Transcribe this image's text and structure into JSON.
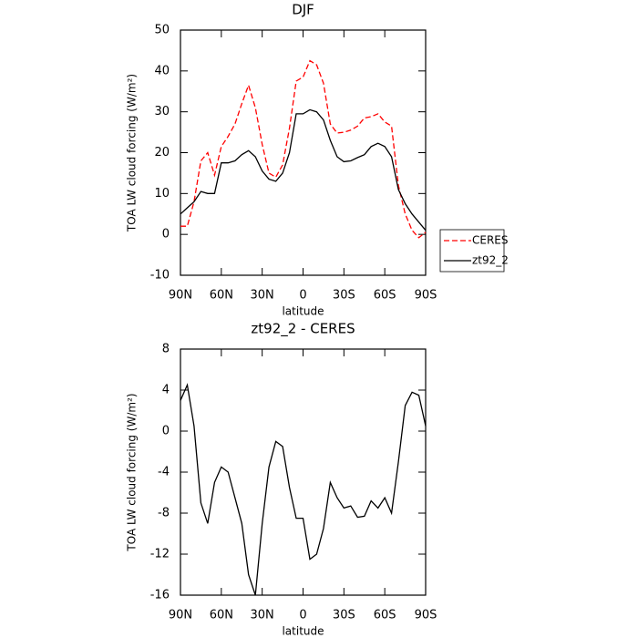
{
  "chart_data": [
    {
      "type": "line",
      "title": "DJF",
      "xlabel": "latitude",
      "ylabel": "TOA LW cloud forcing (W/m²)",
      "x": [
        90,
        85,
        80,
        75,
        70,
        65,
        60,
        55,
        50,
        45,
        40,
        35,
        30,
        25,
        20,
        15,
        10,
        5,
        0,
        -5,
        -10,
        -15,
        -20,
        -25,
        -30,
        -35,
        -40,
        -45,
        -50,
        -55,
        -60,
        -65,
        -70,
        -75,
        -80,
        -85,
        -90
      ],
      "xlim": [
        90,
        -90
      ],
      "xticks": [
        {
          "value": 90,
          "label": "90N"
        },
        {
          "value": 60,
          "label": "60N"
        },
        {
          "value": 30,
          "label": "30N"
        },
        0,
        {
          "value": -30,
          "label": "30S"
        },
        {
          "value": -60,
          "label": "60S"
        },
        {
          "value": -90,
          "label": "90S"
        }
      ],
      "ylim": [
        -10,
        50
      ],
      "yticks": [
        -10,
        0,
        10,
        20,
        30,
        40,
        50
      ],
      "legend": "right",
      "series": [
        {
          "name": "CERES",
          "color": "#ff0000",
          "style": "dashed",
          "values": [
            2,
            2,
            8,
            18,
            20,
            14.5,
            21.5,
            24,
            27,
            32,
            36.5,
            31,
            22,
            15,
            14,
            17,
            26,
            37.5,
            38.5,
            42.5,
            41.5,
            37,
            27,
            24.8,
            25,
            25.5,
            26.5,
            28.5,
            28.8,
            29.5,
            27.5,
            26.5,
            12,
            5,
            1,
            -0.8,
            0.5
          ]
        },
        {
          "name": "zt92_2",
          "color": "#000000",
          "style": "solid",
          "values": [
            5,
            6.5,
            8,
            10.5,
            10,
            10,
            17.5,
            17.5,
            18,
            19.5,
            20.5,
            19,
            15.5,
            13.5,
            13,
            15,
            20,
            29.5,
            29.5,
            30.5,
            30,
            28,
            23,
            19,
            17.8,
            18,
            18.8,
            19.5,
            21.5,
            22.3,
            21.5,
            19,
            11,
            7.5,
            5,
            3,
            1
          ]
        }
      ]
    },
    {
      "type": "line",
      "title": "zt92_2 - CERES",
      "xlabel": "latitude",
      "ylabel": "TOA LW cloud forcing (W/m²)",
      "x": [
        90,
        85,
        80,
        75,
        70,
        65,
        60,
        55,
        50,
        45,
        40,
        35,
        30,
        25,
        20,
        15,
        10,
        5,
        0,
        -5,
        -10,
        -15,
        -20,
        -25,
        -30,
        -35,
        -40,
        -45,
        -50,
        -55,
        -60,
        -65,
        -70,
        -75,
        -80,
        -85,
        -90
      ],
      "xlim": [
        90,
        -90
      ],
      "xticks": [
        {
          "value": 90,
          "label": "90N"
        },
        {
          "value": 60,
          "label": "60N"
        },
        {
          "value": 30,
          "label": "30N"
        },
        0,
        {
          "value": -30,
          "label": "30S"
        },
        {
          "value": -60,
          "label": "60S"
        },
        {
          "value": -90,
          "label": "90S"
        }
      ],
      "ylim": [
        -16,
        8
      ],
      "yticks": [
        -16,
        -12,
        -8,
        -4,
        0,
        4,
        8
      ],
      "series": [
        {
          "color": "#000000",
          "style": "solid",
          "values": [
            3,
            4.5,
            0.5,
            -7,
            -9,
            -5,
            -3.5,
            -4,
            -6.5,
            -9,
            -14,
            -16,
            -9,
            -3.5,
            -1,
            -1.5,
            -5.5,
            -8.5,
            -8.5,
            -12.5,
            -12,
            -9.5,
            -5,
            -6.5,
            -7.5,
            -7.3,
            -8.4,
            -8.3,
            -6.8,
            -7.5,
            -6.5,
            -8,
            -3,
            2.5,
            3.8,
            3.5,
            0.5
          ]
        }
      ]
    }
  ]
}
